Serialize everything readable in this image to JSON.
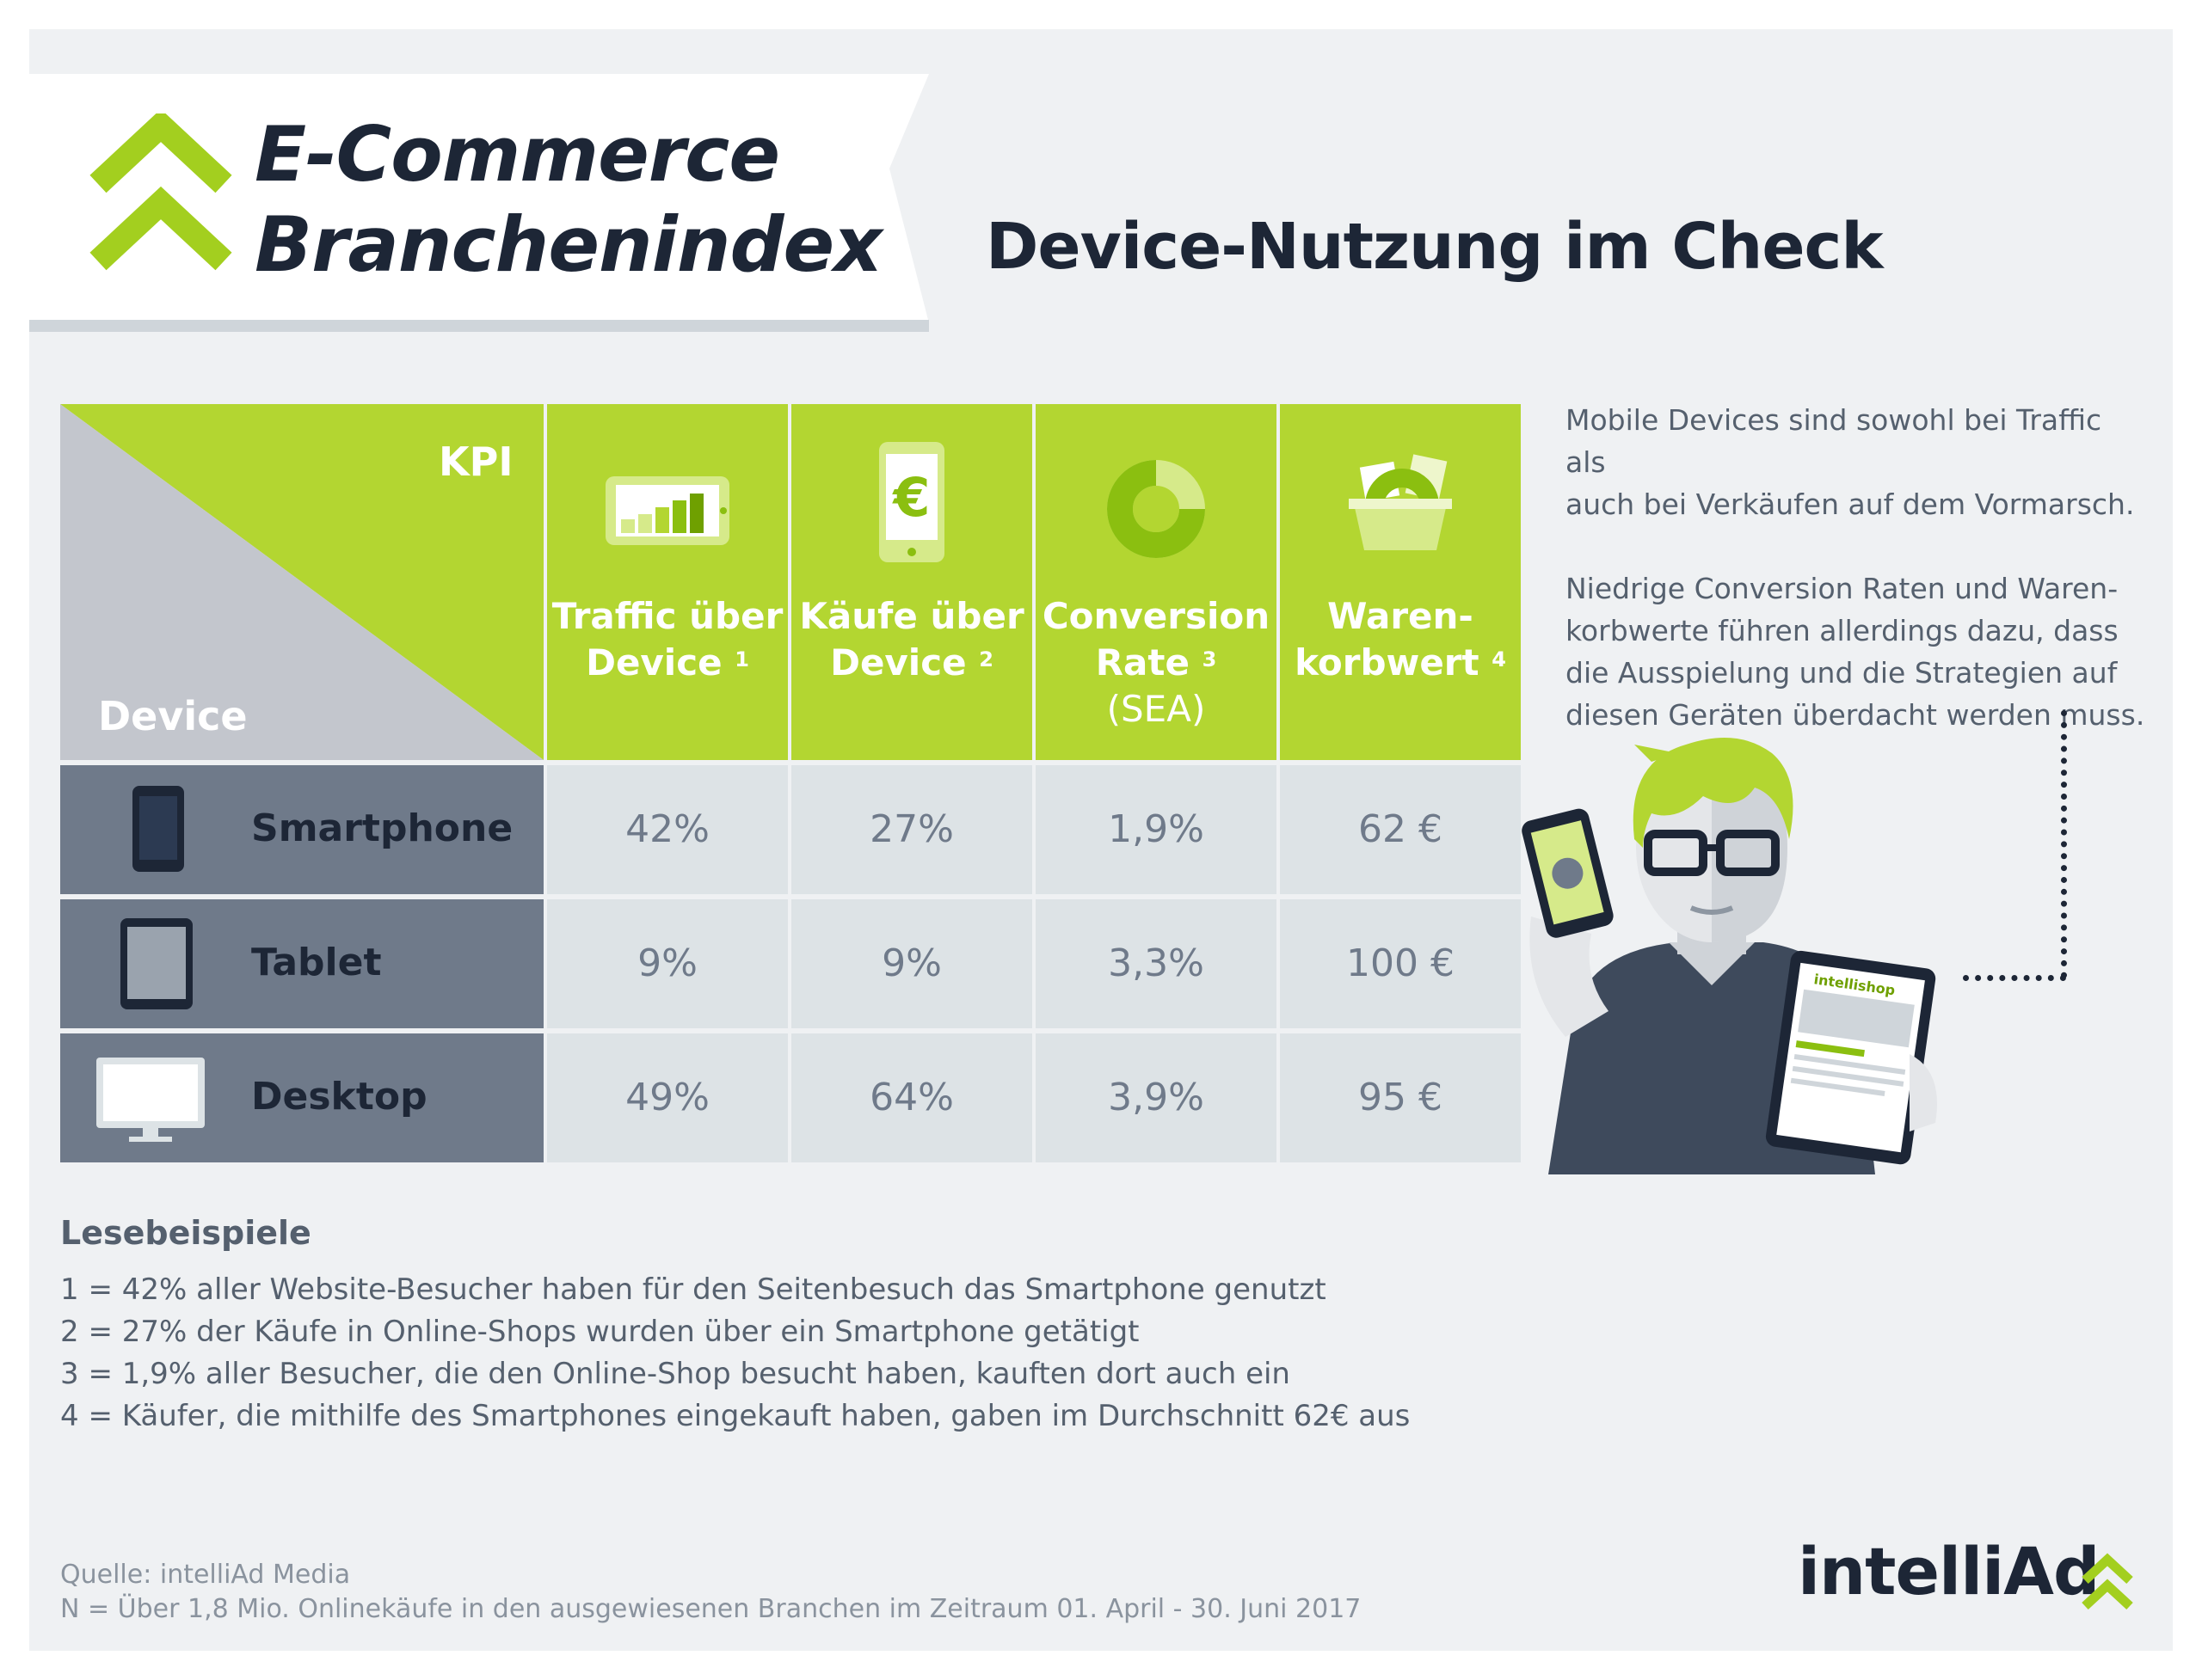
{
  "header": {
    "logo_line1": "E-Commerce",
    "logo_line2": "Branchenindex",
    "logo_icon": "double-chevron-up-icon",
    "title": "Device-Nutzung im Check"
  },
  "table": {
    "corner": {
      "kpi": "KPI",
      "device": "Device"
    },
    "columns": [
      {
        "icon": "traffic-bars-icon",
        "line1": "Traffic über",
        "line2": "Device",
        "sup": "1",
        "line3": ""
      },
      {
        "icon": "phone-euro-icon",
        "line1": "Käufe über",
        "line2": "Device",
        "sup": "2",
        "line3": ""
      },
      {
        "icon": "donut-icon",
        "line1": "Conversion",
        "line2": "Rate",
        "sup": "3",
        "line3": "(SEA)"
      },
      {
        "icon": "shopping-basket-icon",
        "line1": "Waren-",
        "line2": "korbwert",
        "sup": "4",
        "line3": ""
      }
    ],
    "rows": [
      {
        "device": "Smartphone",
        "icon": "smartphone-icon",
        "values": [
          "42%",
          "27%",
          "1,9%",
          "62 €"
        ]
      },
      {
        "device": "Tablet",
        "icon": "tablet-icon",
        "values": [
          "9%",
          "9%",
          "3,3%",
          "100 €"
        ]
      },
      {
        "device": "Desktop",
        "icon": "desktop-icon",
        "values": [
          "49%",
          "64%",
          "3,9%",
          "95 €"
        ]
      }
    ]
  },
  "side": {
    "p1_l1": "Mobile Devices sind sowohl bei Traffic als",
    "p1_l2": "auch bei Verkäufen auf dem Vormarsch.",
    "p2_l1": "Niedrige Conversion Raten und Waren-",
    "p2_l2": "korbwerte führen allerdings dazu, dass",
    "p2_l3": "die Ausspielung und die Strategien auf",
    "p2_l4": "diesen Geräten überdacht werden muss.",
    "tablet_screen_text": "intellishop"
  },
  "examples": {
    "title": "Lesebeispiele",
    "lines": [
      "1 = 42% aller Website-Besucher haben für den Seitenbesuch das Smartphone genutzt",
      "2 = 27% der Käufe in Online-Shops wurden über ein Smartphone getätigt",
      "3 = 1,9% aller Besucher, die den Online-Shop besucht haben, kauften dort auch ein",
      "4 = Käufer, die mithilfe des Smartphones eingekauft haben, gaben im Durchschnitt 62€ aus"
    ]
  },
  "footer": {
    "source": "Quelle: intelliAd Media",
    "note": "N = Über 1,8 Mio. Onlinekäufe in den ausgewiesenen Branchen im Zeitraum 01. April - 30. Juni 2017",
    "brand": "intelliAd",
    "brand_icon": "double-chevron-up-icon"
  },
  "colors": {
    "green": "#b3d631",
    "dark": "#1d2636",
    "slate": "#6f7a8a",
    "cell": "#dde3e6",
    "bg": "#eff1f3"
  }
}
